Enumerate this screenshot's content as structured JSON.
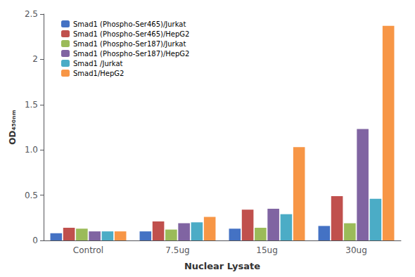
{
  "chart_data": {
    "type": "bar",
    "xlabel": "Nuclear Lysate",
    "ylabel": "OD₄₅₀ₙₘ",
    "categories": [
      "Control",
      "7.5ug",
      "15ug",
      "30ug"
    ],
    "series": [
      {
        "name": "Smad1 (Phospho-Ser465)/Jurkat",
        "color": "#4472C4",
        "values": [
          0.08,
          0.1,
          0.13,
          0.16
        ]
      },
      {
        "name": "Smad1 (Phospho-Ser465)/HepG2",
        "color": "#C0504D",
        "values": [
          0.14,
          0.21,
          0.34,
          0.49
        ]
      },
      {
        "name": "Smad1 (Phospho-Ser187)/Jurkat",
        "color": "#9BBB59",
        "values": [
          0.13,
          0.12,
          0.14,
          0.19
        ]
      },
      {
        "name": "Smad1 (Phospho-Ser187)/HepG2",
        "color": "#8064A2",
        "values": [
          0.1,
          0.19,
          0.35,
          1.23
        ]
      },
      {
        "name": "Smad1 /Jurkat",
        "color": "#4BACC6",
        "values": [
          0.1,
          0.2,
          0.29,
          0.46
        ]
      },
      {
        "name": "Smad1/HepG2",
        "color": "#F79646",
        "values": [
          0.1,
          0.26,
          1.03,
          2.37
        ]
      }
    ],
    "ylim": [
      0,
      2.5
    ],
    "yticks": [
      0,
      0.5,
      {
        "value": 1,
        "label": "1.0"
      },
      1.5,
      2,
      2.5
    ],
    "grid": false,
    "legend": "upper left"
  }
}
